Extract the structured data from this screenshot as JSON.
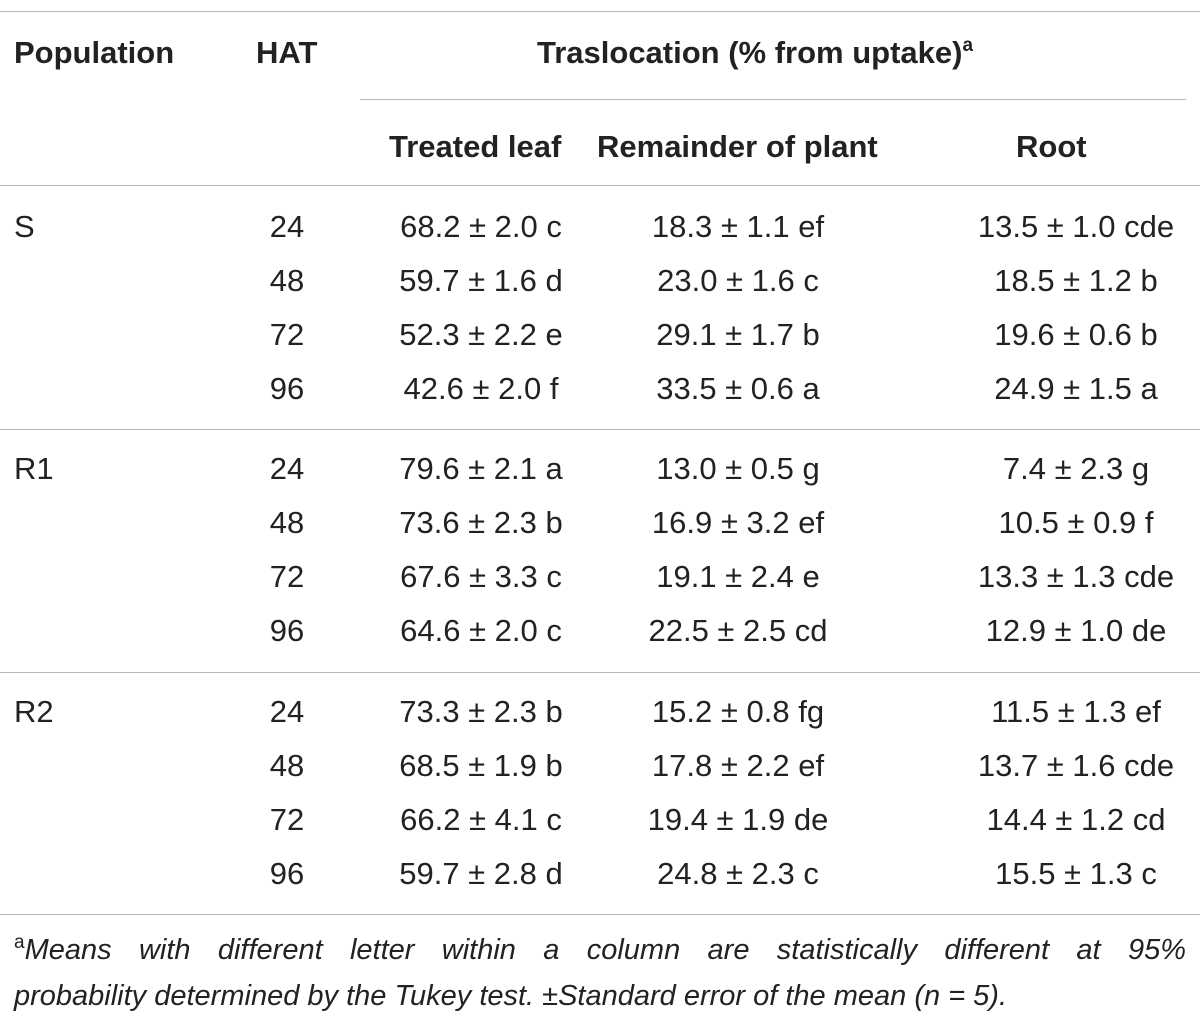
{
  "table": {
    "headers": {
      "population": "Population",
      "hat": "HAT",
      "group": "Traslocation (% from uptake)",
      "group_note_marker": "a",
      "treated_leaf": "Treated leaf",
      "remainder": "Remainder of plant",
      "root": "Root"
    },
    "groups": [
      {
        "population": "S",
        "rows": [
          {
            "hat": "24",
            "treated_leaf": "68.2 ± 2.0 c",
            "remainder": "18.3 ± 1.1 ef",
            "root": "13.5 ± 1.0 cde"
          },
          {
            "hat": "48",
            "treated_leaf": "59.7 ± 1.6 d",
            "remainder": "23.0 ± 1.6 c",
            "root": "18.5 ± 1.2 b"
          },
          {
            "hat": "72",
            "treated_leaf": "52.3 ± 2.2 e",
            "remainder": "29.1 ± 1.7 b",
            "root": "19.6 ± 0.6 b"
          },
          {
            "hat": "96",
            "treated_leaf": "42.6 ± 2.0 f",
            "remainder": "33.5 ± 0.6 a",
            "root": "24.9 ± 1.5 a"
          }
        ]
      },
      {
        "population": "R1",
        "rows": [
          {
            "hat": "24",
            "treated_leaf": "79.6 ± 2.1 a",
            "remainder": "13.0 ± 0.5 g",
            "root": "7.4 ± 2.3 g"
          },
          {
            "hat": "48",
            "treated_leaf": "73.6 ± 2.3 b",
            "remainder": "16.9 ± 3.2 ef",
            "root": "10.5 ± 0.9 f"
          },
          {
            "hat": "72",
            "treated_leaf": "67.6 ± 3.3 c",
            "remainder": "19.1 ± 2.4 e",
            "root": "13.3 ± 1.3 cde"
          },
          {
            "hat": "96",
            "treated_leaf": "64.6 ± 2.0 c",
            "remainder": "22.5 ± 2.5 cd",
            "root": "12.9 ± 1.0 de"
          }
        ]
      },
      {
        "population": "R2",
        "rows": [
          {
            "hat": "24",
            "treated_leaf": "73.3 ± 2.3 b",
            "remainder": "15.2 ± 0.8 fg",
            "root": "11.5 ± 1.3 ef"
          },
          {
            "hat": "48",
            "treated_leaf": "68.5 ± 1.9 b",
            "remainder": "17.8 ± 2.2 ef",
            "root": "13.7 ± 1.6 cde"
          },
          {
            "hat": "72",
            "treated_leaf": "66.2 ± 4.1 c",
            "remainder": "19.4 ± 1.9 de",
            "root": "14.4 ± 1.2 cd"
          },
          {
            "hat": "96",
            "treated_leaf": "59.7 ± 2.8 d",
            "remainder": "24.8 ± 2.3 c",
            "root": "15.5 ± 1.3 c"
          }
        ]
      }
    ]
  },
  "footnote": {
    "marker": "a",
    "line1": "Means with different letter within a column are statistically different at 95%",
    "line2": "probability determined by the Tukey test. ±Standard error of the mean (n = 5)."
  }
}
